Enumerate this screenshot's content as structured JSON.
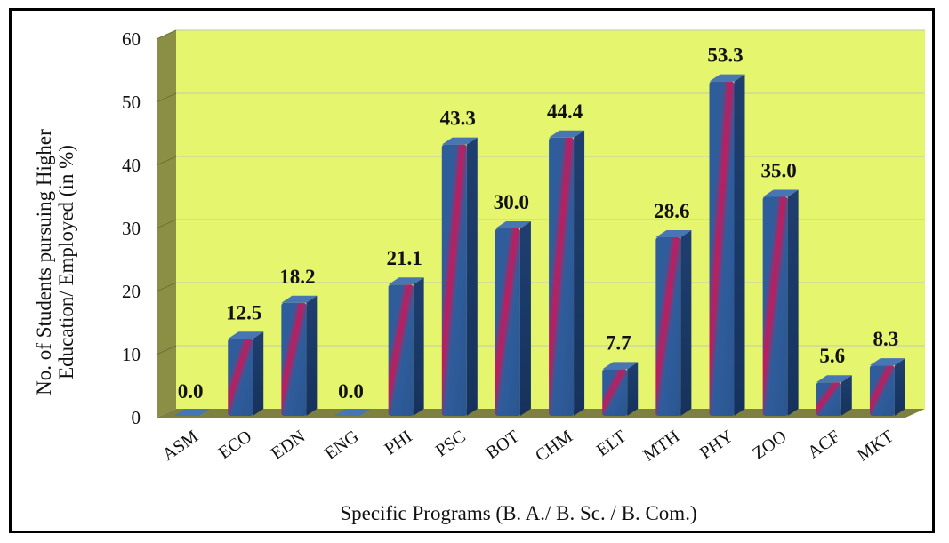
{
  "chart_data": {
    "type": "bar",
    "title": "",
    "xlabel": "Specific Programs (B. A./ B. Sc. / B. Com.)",
    "ylabel_line1": "No. of Students pursuing Higher",
    "ylabel_line2": "Education/ Employed (in %)",
    "ylim": [
      0,
      60
    ],
    "yticks": [
      0,
      10,
      20,
      30,
      40,
      50,
      60
    ],
    "grid": true,
    "categories": [
      "ASM",
      "ECO",
      "EDN",
      "ENG",
      "PHI",
      "PSC",
      "BOT",
      "CHM",
      "ELT",
      "MTH",
      "PHY",
      "ZOO",
      "ACF",
      "MKT"
    ],
    "values": [
      0.0,
      12.5,
      18.2,
      0.0,
      21.1,
      43.3,
      30.0,
      44.4,
      7.7,
      28.6,
      53.3,
      35.0,
      5.6,
      8.3
    ],
    "value_labels": [
      "0.0",
      "12.5",
      "18.2",
      "0.0",
      "21.1",
      "43.3",
      "30.0",
      "44.4",
      "7.7",
      "28.6",
      "53.3",
      "35.0",
      "5.6",
      "8.3"
    ],
    "colors": {
      "plot_background": "#e6f56e",
      "left_wall": "#8b8f46",
      "floor": "#7d8041",
      "bar_front": "#2f5d9c",
      "bar_side": "#1f3f70",
      "bar_top": "#4776b3",
      "bar_highlight": "#c8185a",
      "gridline": "#c9d3a2"
    }
  }
}
